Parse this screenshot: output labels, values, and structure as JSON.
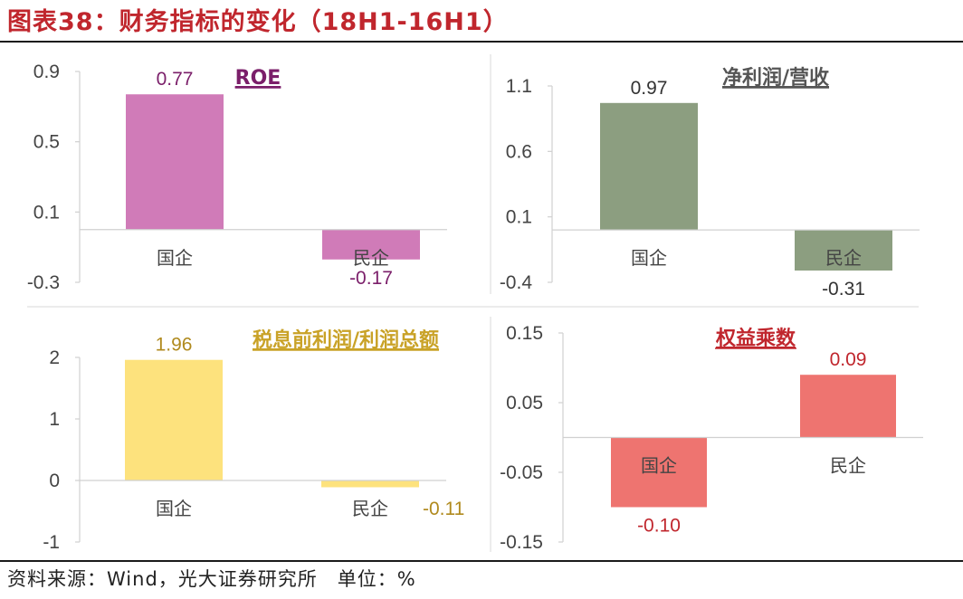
{
  "title": "图表38：财务指标的变化（18H1-16H1）",
  "footer": "资料来源：Wind，光大证券研究所　单位：%",
  "chart_data": [
    {
      "type": "bar",
      "title": "ROE",
      "title_color": "#7b1f6a",
      "bar_color": "#d07bb8",
      "label_color": "#7b1f6a",
      "categories": [
        "国企",
        "民企"
      ],
      "values": [
        0.77,
        -0.17
      ],
      "value_labels": [
        "0.77",
        "-0.17"
      ],
      "ylim": [
        -0.3,
        0.9
      ],
      "yticks": [
        0.9,
        0.5,
        0.1,
        -0.3
      ],
      "ytick_labels": [
        "0.9",
        "0.5",
        "0.1",
        "-0.3"
      ]
    },
    {
      "type": "bar",
      "title": "净利润/营收",
      "title_color": "#555555",
      "bar_color": "#8c9e80",
      "label_color": "#333333",
      "categories": [
        "国企",
        "民企"
      ],
      "values": [
        0.97,
        -0.31
      ],
      "value_labels": [
        "0.97",
        "-0.31"
      ],
      "ylim": [
        -0.4,
        1.1
      ],
      "yticks": [
        1.1,
        0.6,
        0.1,
        -0.4
      ],
      "ytick_labels": [
        "1.1",
        "0.6",
        "0.1",
        "-0.4"
      ]
    },
    {
      "type": "bar",
      "title": "税息前利润/利润总额",
      "title_color": "#c9a227",
      "bar_color": "#fde27d",
      "label_color": "#b08a1e",
      "categories": [
        "国企",
        "民企"
      ],
      "values": [
        1.96,
        -0.11
      ],
      "value_labels": [
        "1.96",
        "-0.11"
      ],
      "ylim": [
        -1,
        2
      ],
      "yticks": [
        2,
        1,
        0,
        -1
      ],
      "ytick_labels": [
        "2",
        "1",
        "0",
        "-1"
      ]
    },
    {
      "type": "bar",
      "title": "权益乘数",
      "title_color": "#c0262d",
      "bar_color": "#ee7470",
      "label_color": "#c0262d",
      "categories": [
        "国企",
        "民企"
      ],
      "values": [
        -0.1,
        0.09
      ],
      "value_labels": [
        "-0.10",
        "0.09"
      ],
      "ylim": [
        -0.15,
        0.15
      ],
      "yticks": [
        0.15,
        0.05,
        -0.05,
        -0.15
      ],
      "ytick_labels": [
        "0.15",
        "0.05",
        "-0.05",
        "-0.15"
      ]
    }
  ]
}
